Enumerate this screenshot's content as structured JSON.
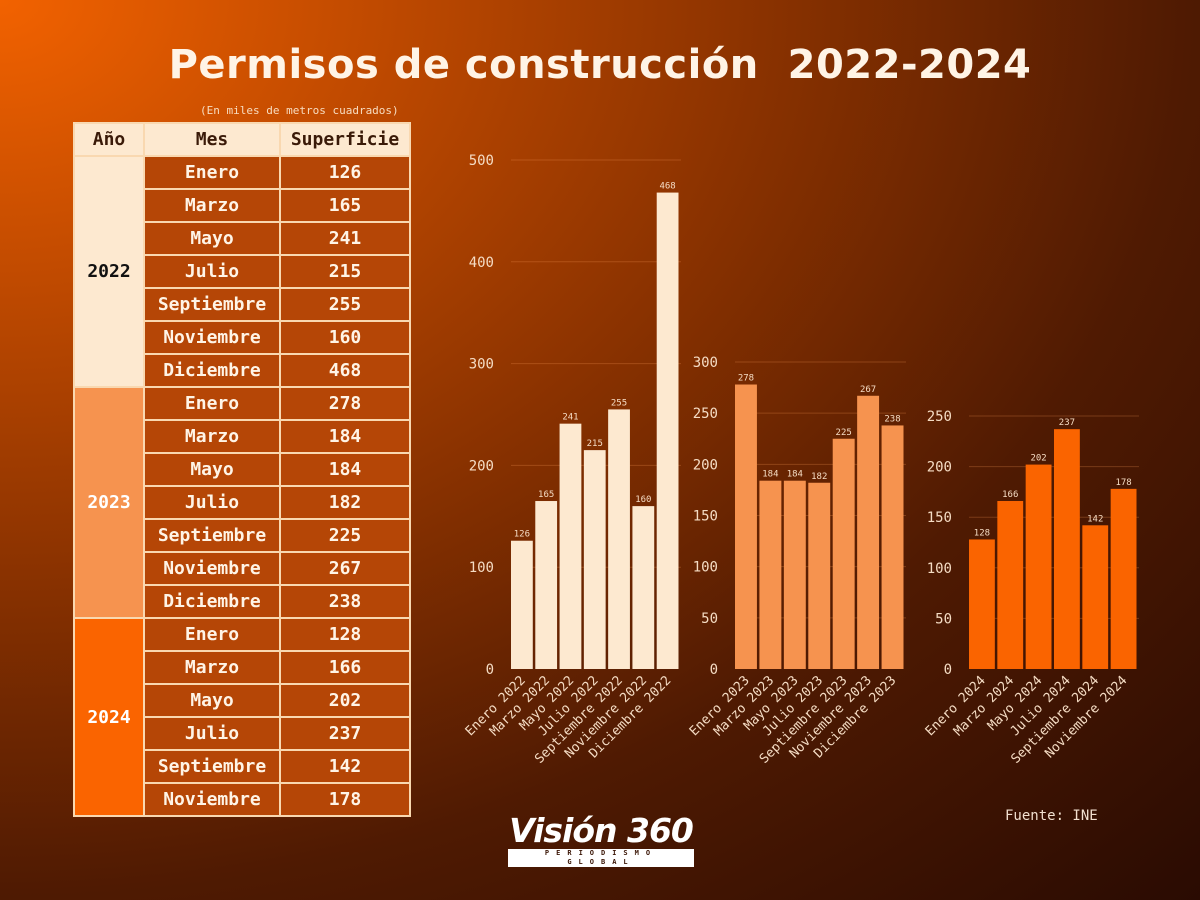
{
  "title": "Permisos de construcción  2022-2024",
  "subtitle": "(En miles de metros cuadrados)",
  "table": {
    "headers": [
      "Año",
      "Mes",
      "Superficie"
    ],
    "groups": [
      {
        "year": "2022",
        "rows": [
          [
            "Enero",
            "126"
          ],
          [
            "Marzo",
            "165"
          ],
          [
            "Mayo",
            "241"
          ],
          [
            "Julio",
            "215"
          ],
          [
            "Septiembre",
            "255"
          ],
          [
            "Noviembre",
            "160"
          ],
          [
            "Diciembre",
            "468"
          ]
        ]
      },
      {
        "year": "2023",
        "rows": [
          [
            "Enero",
            "278"
          ],
          [
            "Marzo",
            "184"
          ],
          [
            "Mayo",
            "184"
          ],
          [
            "Julio",
            "182"
          ],
          [
            "Septiembre",
            "225"
          ],
          [
            "Noviembre",
            "267"
          ],
          [
            "Diciembre",
            "238"
          ]
        ]
      },
      {
        "year": "2024",
        "rows": [
          [
            "Enero",
            "128"
          ],
          [
            "Marzo",
            "166"
          ],
          [
            "Mayo",
            "202"
          ],
          [
            "Julio",
            "237"
          ],
          [
            "Septiembre",
            "142"
          ],
          [
            "Noviembre",
            "178"
          ]
        ]
      }
    ]
  },
  "chart_data": [
    {
      "type": "bar",
      "title": "",
      "color": "#fde9d0",
      "ylim": [
        0,
        500
      ],
      "yticks": [
        0,
        100,
        200,
        300,
        400,
        500
      ],
      "categories": [
        "Enero 2022",
        "Marzo 2022",
        "Mayo 2022",
        "Julio 2022",
        "Septiembre 2022",
        "Noviembre 2022",
        "Diciembre 2022"
      ],
      "values": [
        126,
        165,
        241,
        215,
        255,
        160,
        468
      ]
    },
    {
      "type": "bar",
      "title": "",
      "color": "#f6934f",
      "ylim": [
        0,
        300
      ],
      "yticks": [
        0,
        50,
        100,
        150,
        200,
        250,
        300
      ],
      "categories": [
        "Enero 2023",
        "Marzo 2023",
        "Mayo 2023",
        "Julio 2023",
        "Septiembre 2023",
        "Noviembre 2023",
        "Diciembre 2023"
      ],
      "values": [
        278,
        184,
        184,
        182,
        225,
        267,
        238
      ]
    },
    {
      "type": "bar",
      "title": "",
      "color": "#fa6400",
      "ylim": [
        0,
        250
      ],
      "yticks": [
        0,
        50,
        100,
        150,
        200,
        250
      ],
      "categories": [
        "Enero 2024",
        "Marzo 2024",
        "Mayo 2024",
        "Julio 2024",
        "Septiembre 2024",
        "Noviembre 2024"
      ],
      "values": [
        128,
        166,
        202,
        237,
        142,
        178
      ]
    }
  ],
  "source": "Fuente: INE",
  "logo": {
    "name": "Visión 360",
    "tagline": "PERIODISMO GLOBAL"
  }
}
